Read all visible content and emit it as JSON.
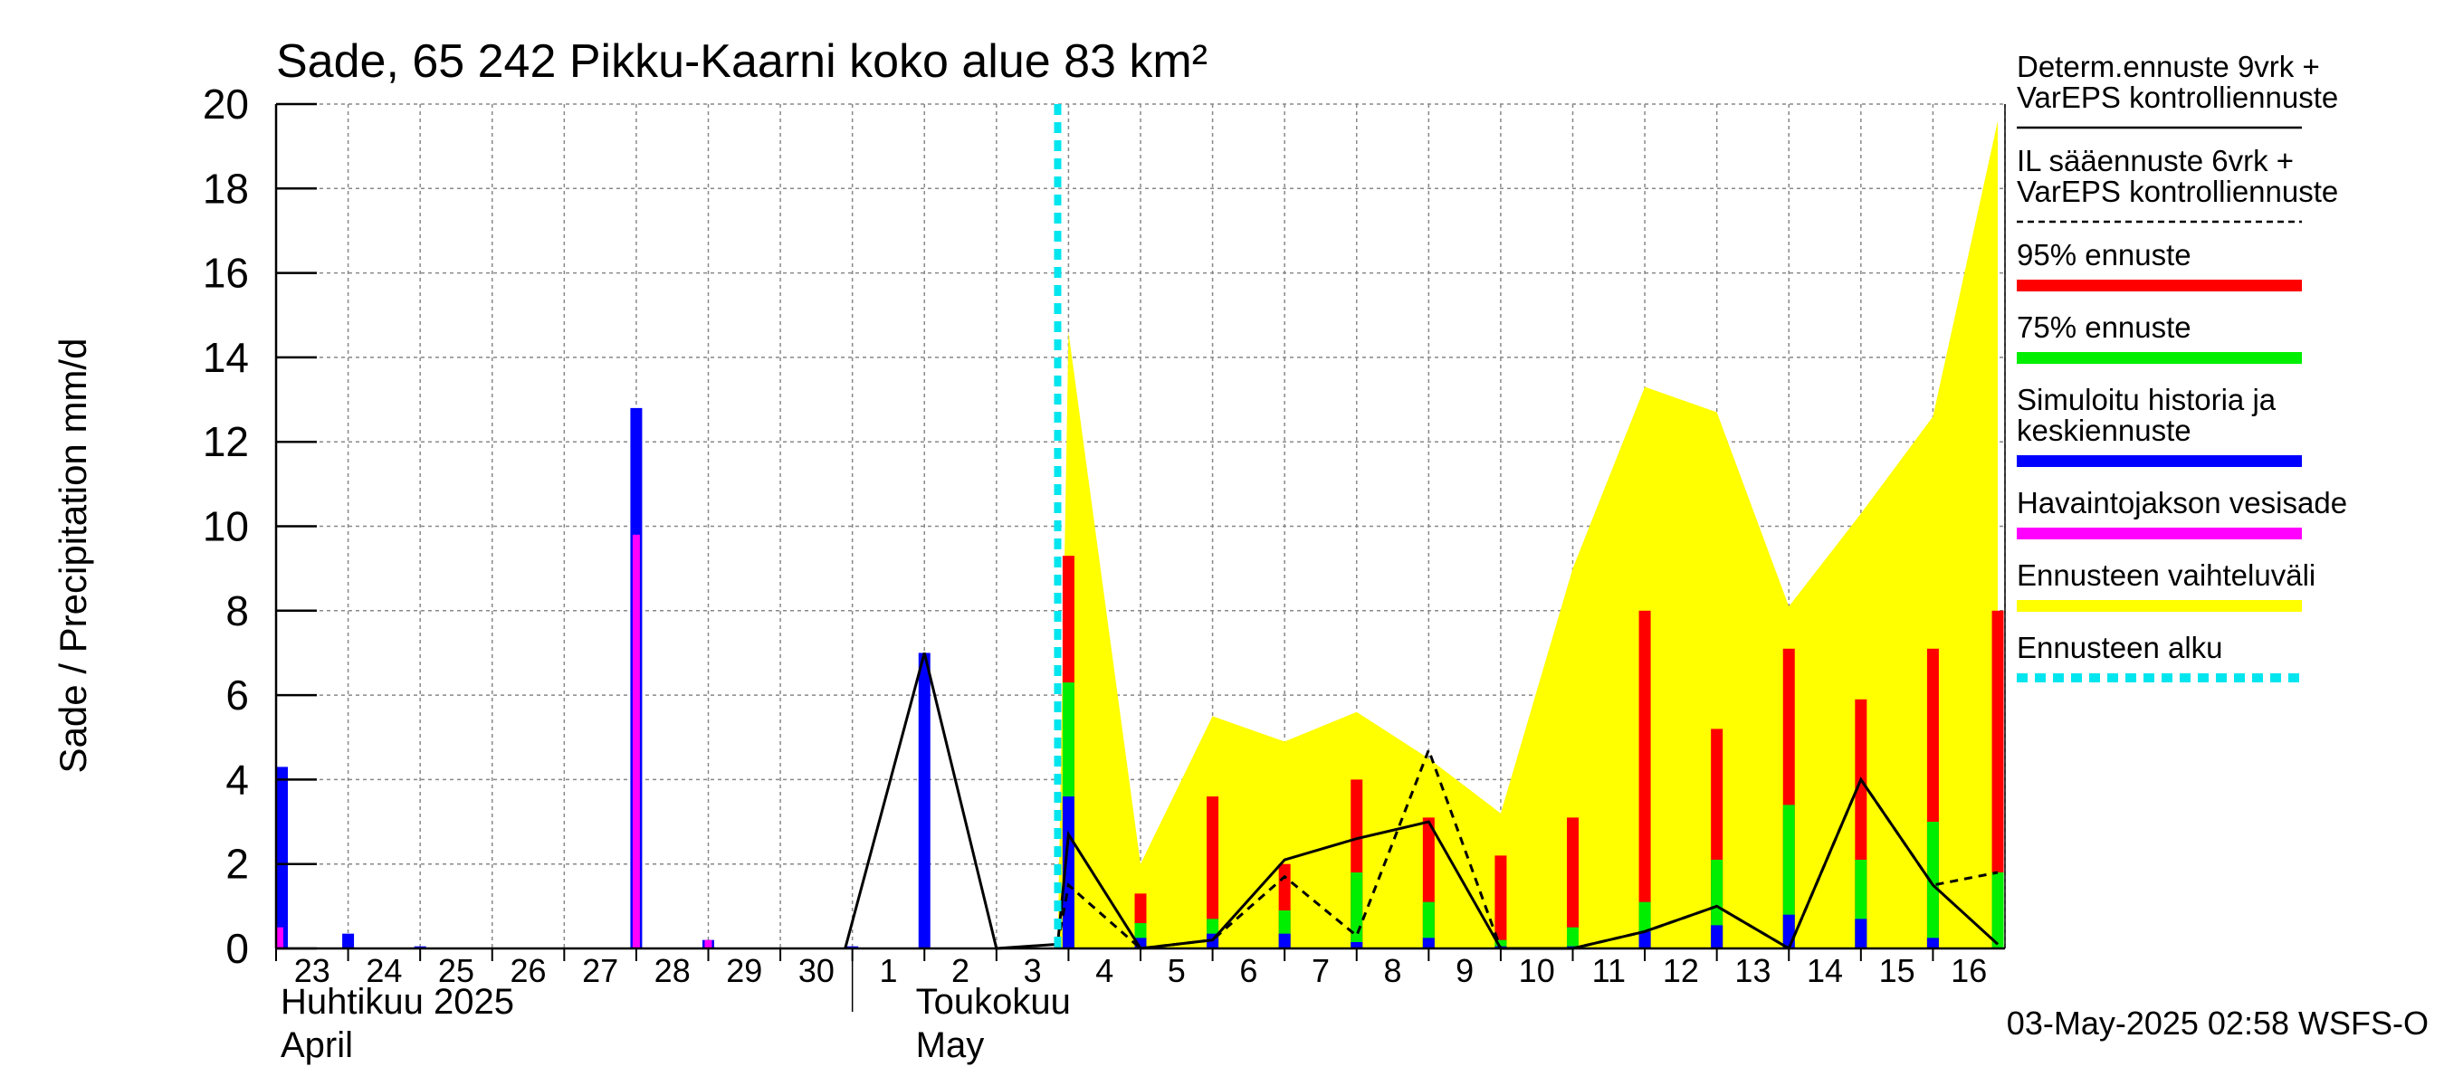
{
  "chart_data": {
    "type": "bar",
    "title": "Sade, 65 242 Pikku-Kaarni koko alue 83 km²",
    "ylabel": "Sade / Precipitation   mm/d",
    "ylim": [
      0,
      20
    ],
    "yticks": [
      "0",
      "2",
      "4",
      "6",
      "8",
      "10",
      "12",
      "14",
      "16",
      "18",
      "20"
    ],
    "xticks": [
      "23",
      "24",
      "25",
      "26",
      "27",
      "28",
      "29",
      "30",
      "1",
      "2",
      "3",
      "4",
      "5",
      "6",
      "7",
      "8",
      "9",
      "10",
      "11",
      "12",
      "13",
      "14",
      "15",
      "16"
    ],
    "month_labels": {
      "april_fi": "Huhtikuu  2025",
      "april_en": "April",
      "may_fi": "Toukokuu",
      "may_en": "May"
    },
    "forecast_start_day": 10.85,
    "observed": {
      "name": "Havaintojakson vesisade",
      "days": [
        0,
        5,
        6
      ],
      "values": [
        0.5,
        9.8,
        0.2
      ]
    },
    "simulated": {
      "name": "Simuloitu historia ja keskiennuste",
      "days": [
        0,
        1,
        2,
        5,
        6,
        8,
        9,
        11,
        12,
        13,
        14,
        15,
        16,
        17,
        18,
        19,
        20,
        21,
        22,
        23
      ],
      "values": [
        4.3,
        0.35,
        0.05,
        12.8,
        0.2,
        0.05,
        7.0,
        3.6,
        0.25,
        0.35,
        0.35,
        0.15,
        0.25,
        0.05,
        0.05,
        0.4,
        0.55,
        0.8,
        0.7,
        0.25
      ]
    },
    "p75": {
      "name": "75% ennuste",
      "days": [
        11,
        12,
        13,
        14,
        15,
        16,
        17,
        18,
        19,
        20,
        21,
        22,
        23,
        23.9
      ],
      "values": [
        6.3,
        0.6,
        0.7,
        0.9,
        1.8,
        1.1,
        0.2,
        0.5,
        1.1,
        2.1,
        3.4,
        2.1,
        3.0,
        1.8
      ]
    },
    "p95": {
      "name": "95% ennuste",
      "days": [
        11,
        12,
        13,
        14,
        15,
        16,
        17,
        18,
        19,
        20,
        21,
        22,
        23,
        23.9
      ],
      "values": [
        9.3,
        1.3,
        3.6,
        2.0,
        4.0,
        3.1,
        2.2,
        3.1,
        8.0,
        5.2,
        7.1,
        5.9,
        7.1,
        8.0
      ]
    },
    "band": {
      "name": "Ennusteen vaihteluväli",
      "days": [
        10.85,
        11,
        12,
        13,
        14,
        15,
        16,
        17,
        18,
        19,
        20,
        21,
        22,
        23,
        23.9
      ],
      "upper": [
        0,
        14.6,
        2.0,
        5.5,
        4.9,
        5.6,
        4.5,
        3.2,
        9.0,
        13.3,
        12.7,
        8.1,
        10.3,
        12.6,
        19.6
      ],
      "lower": [
        0,
        0,
        0,
        0,
        0,
        0,
        0,
        0,
        0,
        0,
        0,
        0,
        0,
        0,
        0
      ]
    },
    "determ": {
      "name": "Determ.ennuste 9vrk + VarEPS kontrolliennuste",
      "days": [
        7.9,
        9,
        10,
        10.85,
        11,
        12,
        13,
        14,
        15,
        16,
        17,
        18,
        19,
        20,
        21,
        22,
        23,
        23.9
      ],
      "values": [
        0,
        7.0,
        0,
        0.1,
        2.7,
        0,
        0.2,
        2.1,
        2.6,
        3.0,
        0,
        0,
        0.4,
        1.0,
        0,
        4.0,
        1.5,
        0.1
      ]
    },
    "il_forecast": {
      "name": "IL sääennuste 6vrk + VarEPS kontrolliennuste",
      "days": [
        10.85,
        11,
        12,
        13,
        14,
        15,
        16,
        17,
        18,
        19,
        20,
        21,
        22,
        23,
        23.9
      ],
      "values": [
        0.1,
        1.5,
        0,
        0.2,
        1.7,
        0.3,
        4.7,
        0,
        0,
        0.4,
        1.0,
        0,
        4.0,
        1.5,
        1.8
      ]
    },
    "legend": [
      {
        "line1": "Determ.ennuste 9vrk +",
        "line2": "VarEPS kontrolliennuste",
        "style": "solid",
        "color": "#000000"
      },
      {
        "line1": "IL sääennuste 6vrk  +",
        "line2": "  VarEPS kontrolliennuste",
        "style": "dashed",
        "color": "#000000"
      },
      {
        "line1": "95% ennuste",
        "line2": "",
        "style": "bar",
        "color": "#ff0000"
      },
      {
        "line1": "75% ennuste",
        "line2": "",
        "style": "bar",
        "color": "#00ee00"
      },
      {
        "line1": "Simuloitu historia ja",
        "line2": "keskiennuste",
        "style": "bar",
        "color": "#0000ff"
      },
      {
        "line1": "Havaintojakson vesisade",
        "line2": "",
        "style": "bar",
        "color": "#ff00ff"
      },
      {
        "line1": "Ennusteen vaihteluväli",
        "line2": "",
        "style": "bar",
        "color": "#ffff00"
      },
      {
        "line1": "Ennusteen alku",
        "line2": "",
        "style": "dotted",
        "color": "#00e5ee"
      }
    ],
    "footer": "03-May-2025 02:58 WSFS-O"
  }
}
